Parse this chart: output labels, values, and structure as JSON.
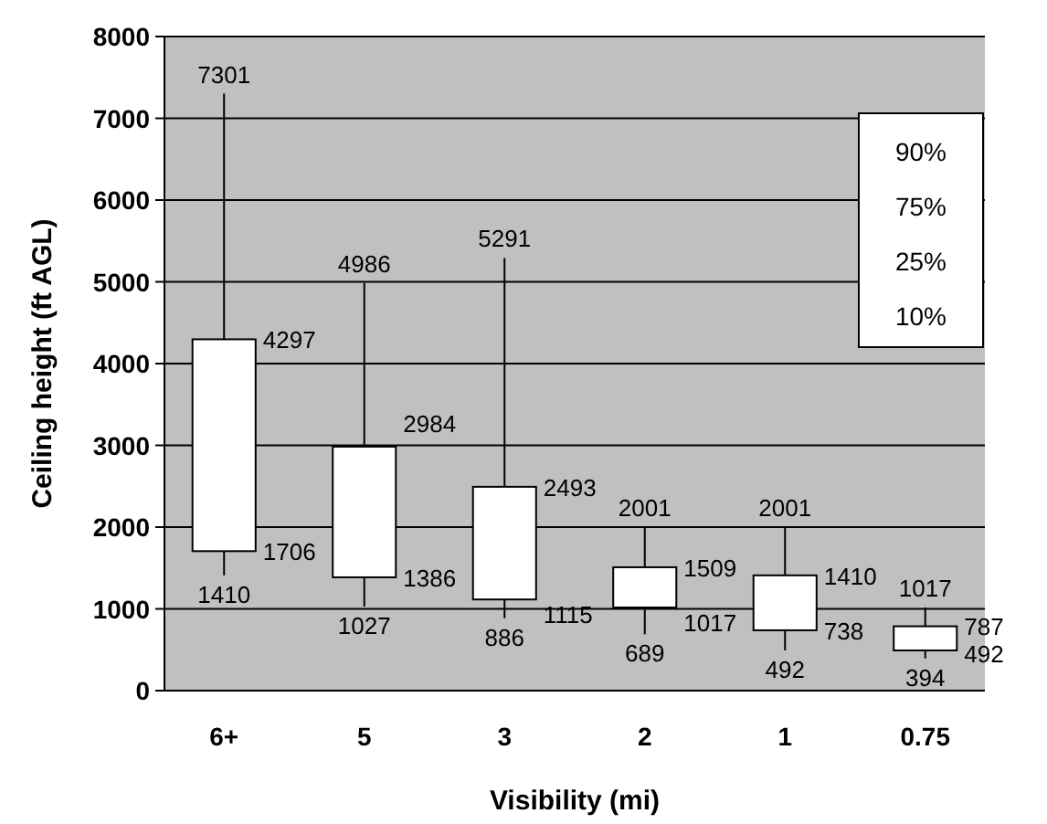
{
  "chart_data": {
    "type": "box",
    "xlabel": "Visibility (mi)",
    "ylabel": "Ceiling height  (ft AGL)",
    "categories": [
      "6+",
      "5",
      "3",
      "2",
      "1",
      "0.75"
    ],
    "boxes": [
      {
        "low": 1410,
        "q1": 1706,
        "q3": 4297,
        "high": 7301
      },
      {
        "low": 1027,
        "q1": 1386,
        "q3": 2984,
        "high": 4986
      },
      {
        "low": 886,
        "q1": 1115,
        "q3": 2493,
        "high": 5291
      },
      {
        "low": 689,
        "q1": 1017,
        "q3": 1509,
        "high": 2001
      },
      {
        "low": 492,
        "q1": 738,
        "q3": 1410,
        "high": 2001
      },
      {
        "low": 394,
        "q1": 492,
        "q3": 787,
        "high": 1017
      }
    ],
    "ylim": [
      0,
      8000
    ],
    "yticks": [
      0,
      1000,
      2000,
      3000,
      4000,
      5000,
      6000,
      7000,
      8000
    ],
    "grid": "y",
    "annotations": [
      "90%",
      "75%",
      "25%",
      "10%",
      {
        "text": "7301",
        "x": "6+",
        "y": 7301
      },
      {
        "text": "4297",
        "x": "6+",
        "y": 4297
      },
      {
        "text": "1706",
        "x": "6+",
        "y": 1706
      },
      {
        "text": "1410",
        "x": "6+",
        "y": 1410
      },
      {
        "text": "4986",
        "x": "5",
        "y": 4986
      },
      {
        "text": "2984",
        "x": "5",
        "y": 2984
      },
      {
        "text": "1386",
        "x": "5",
        "y": 1386
      },
      {
        "text": "1027",
        "x": "5",
        "y": 1027
      },
      {
        "text": "5291",
        "x": "3",
        "y": 5291
      },
      {
        "text": "2493",
        "x": "3",
        "y": 2493
      },
      {
        "text": "1115",
        "x": "3",
        "y": 1115
      },
      {
        "text": "886",
        "x": "3",
        "y": 886
      },
      {
        "text": "2001",
        "x": "2",
        "y": 2001
      },
      {
        "text": "1509",
        "x": "2",
        "y": 1509
      },
      {
        "text": "1017",
        "x": "2",
        "y": 1017
      },
      {
        "text": "689",
        "x": "2",
        "y": 689
      },
      {
        "text": "2001",
        "x": "1",
        "y": 2001
      },
      {
        "text": "1410",
        "x": "1",
        "y": 1410
      },
      {
        "text": "738",
        "x": "1",
        "y": 738
      },
      {
        "text": "492",
        "x": "1",
        "y": 492
      },
      {
        "text": "1017",
        "x": "0.75",
        "y": 1017
      },
      {
        "text": "787",
        "x": "0.75",
        "y": 787
      },
      {
        "text": "492",
        "x": "0.75",
        "y": 492
      },
      {
        "text": "394",
        "x": "0.75",
        "y": 394
      }
    ]
  }
}
